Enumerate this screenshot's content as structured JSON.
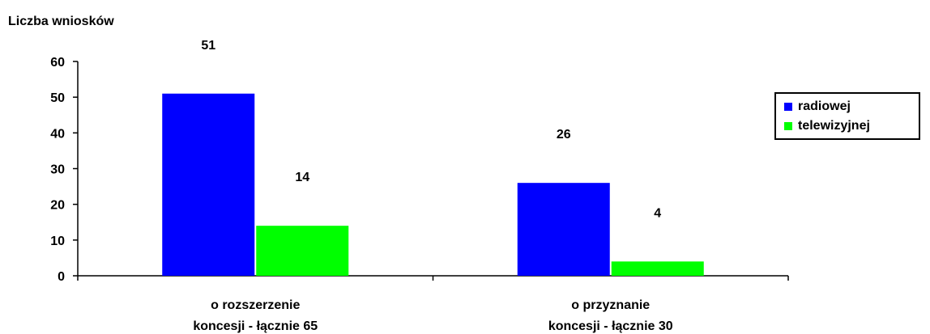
{
  "chart_data": {
    "type": "bar",
    "ylabel": "Liczba wniosków",
    "categories": [
      [
        "o rozszerzenie",
        "koncesji - łącznie 65"
      ],
      [
        "o przyznanie",
        "koncesji - łącznie 30"
      ]
    ],
    "series": [
      {
        "name": "radiowej",
        "values": [
          51,
          26
        ],
        "color": "#0000ff"
      },
      {
        "name": "telewizyjnej",
        "values": [
          14,
          4
        ],
        "color": "#00ff00"
      }
    ],
    "ylim": [
      0,
      60
    ],
    "yticks": [
      0,
      10,
      20,
      30,
      40,
      50,
      60
    ],
    "data_labels": [
      "51",
      "26",
      "14",
      "4"
    ],
    "legend_position": "right",
    "grid": false
  }
}
